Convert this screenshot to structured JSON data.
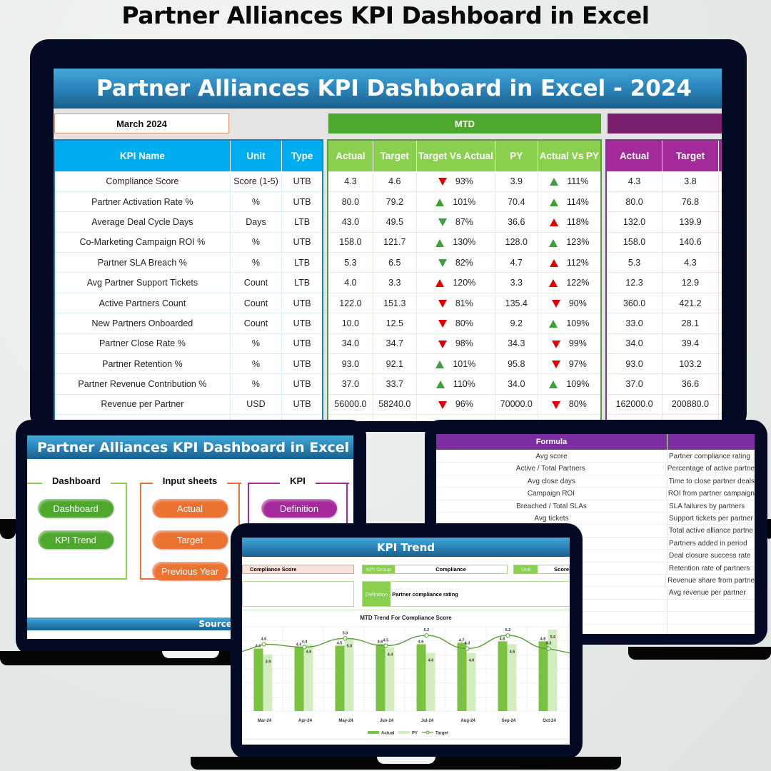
{
  "page_title": "Partner Alliances KPI Dashboard in Excel",
  "main": {
    "banner": "Partner Alliances KPI Dashboard in Excel - 2024",
    "month": "March 2024",
    "mtd_label": "MTD",
    "ytd_label": "",
    "kpi_headers": [
      "KPI Name",
      "Unit",
      "Type"
    ],
    "mtd_headers": [
      "Actual",
      "Target",
      "Target Vs Actual",
      "PY",
      "Actual Vs PY"
    ],
    "ytd_headers": [
      "Actual",
      "Target"
    ],
    "rows": [
      {
        "name": "Compliance Score",
        "unit": "Score (1-5)",
        "type": "UTB",
        "mtd_actual": "4.3",
        "mtd_target": "4.6",
        "tva": "93%",
        "tva_dir": "dn-r",
        "py": "3.9",
        "avp": "111%",
        "avp_dir": "up-g",
        "ytd_actual": "4.3",
        "ytd_target": "3.8"
      },
      {
        "name": "Partner Activation Rate %",
        "unit": "%",
        "type": "UTB",
        "mtd_actual": "80.0",
        "mtd_target": "79.2",
        "tva": "101%",
        "tva_dir": "up-g",
        "py": "70.4",
        "avp": "114%",
        "avp_dir": "up-g",
        "ytd_actual": "80.0",
        "ytd_target": "76.8"
      },
      {
        "name": "Average Deal Cycle Days",
        "unit": "Days",
        "type": "LTB",
        "mtd_actual": "43.0",
        "mtd_target": "49.5",
        "tva": "87%",
        "tva_dir": "dn-g",
        "py": "36.6",
        "avp": "118%",
        "avp_dir": "up-r",
        "ytd_actual": "132.0",
        "ytd_target": "139.9"
      },
      {
        "name": "Co-Marketing Campaign ROI %",
        "unit": "%",
        "type": "UTB",
        "mtd_actual": "158.0",
        "mtd_target": "121.7",
        "tva": "130%",
        "tva_dir": "up-g",
        "py": "128.0",
        "avp": "123%",
        "avp_dir": "up-g",
        "ytd_actual": "158.0",
        "ytd_target": "140.6"
      },
      {
        "name": "Partner SLA Breach %",
        "unit": "%",
        "type": "LTB",
        "mtd_actual": "5.3",
        "mtd_target": "6.5",
        "tva": "82%",
        "tva_dir": "dn-g",
        "py": "4.7",
        "avp": "112%",
        "avp_dir": "up-r",
        "ytd_actual": "5.3",
        "ytd_target": "4.3"
      },
      {
        "name": "Avg Partner Support Tickets",
        "unit": "Count",
        "type": "LTB",
        "mtd_actual": "4.0",
        "mtd_target": "3.3",
        "tva": "120%",
        "tva_dir": "up-r",
        "py": "3.3",
        "avp": "122%",
        "avp_dir": "up-r",
        "ytd_actual": "12.3",
        "ytd_target": "12.9"
      },
      {
        "name": "Active Partners Count",
        "unit": "Count",
        "type": "UTB",
        "mtd_actual": "122.0",
        "mtd_target": "151.3",
        "tva": "81%",
        "tva_dir": "dn-r",
        "py": "135.4",
        "avp": "90%",
        "avp_dir": "dn-r",
        "ytd_actual": "360.0",
        "ytd_target": "421.2"
      },
      {
        "name": "New Partners Onboarded",
        "unit": "Count",
        "type": "UTB",
        "mtd_actual": "10.0",
        "mtd_target": "12.5",
        "tva": "80%",
        "tva_dir": "dn-r",
        "py": "9.2",
        "avp": "109%",
        "avp_dir": "up-g",
        "ytd_actual": "33.0",
        "ytd_target": "28.1"
      },
      {
        "name": "Partner Close Rate %",
        "unit": "%",
        "type": "UTB",
        "mtd_actual": "34.0",
        "mtd_target": "34.7",
        "tva": "98%",
        "tva_dir": "dn-r",
        "py": "34.3",
        "avp": "99%",
        "avp_dir": "dn-r",
        "ytd_actual": "34.0",
        "ytd_target": "39.4"
      },
      {
        "name": "Partner Retention %",
        "unit": "%",
        "type": "UTB",
        "mtd_actual": "93.0",
        "mtd_target": "92.1",
        "tva": "101%",
        "tva_dir": "up-g",
        "py": "95.8",
        "avp": "97%",
        "avp_dir": "dn-r",
        "ytd_actual": "93.0",
        "ytd_target": "103.2"
      },
      {
        "name": "Partner Revenue Contribution %",
        "unit": "%",
        "type": "UTB",
        "mtd_actual": "37.0",
        "mtd_target": "33.7",
        "tva": "110%",
        "tva_dir": "up-g",
        "py": "34.0",
        "avp": "109%",
        "avp_dir": "up-g",
        "ytd_actual": "37.0",
        "ytd_target": "36.6"
      },
      {
        "name": "Revenue per Partner",
        "unit": "USD",
        "type": "UTB",
        "mtd_actual": "56000.0",
        "mtd_target": "58240.0",
        "tva": "96%",
        "tva_dir": "dn-r",
        "py": "70000.0",
        "avp": "80%",
        "avp_dir": "dn-r",
        "ytd_actual": "162000.0",
        "ytd_target": "200880.0"
      }
    ]
  },
  "home": {
    "banner": "Partner Alliances KPI Dashboard in Excel",
    "groups": [
      {
        "title": "Dashboard",
        "buttons": [
          "Dashboard",
          "KPI Trend"
        ]
      },
      {
        "title": "Input sheets",
        "buttons": [
          "Actual",
          "Target",
          "Previous Year"
        ]
      },
      {
        "title": "KPI",
        "buttons": [
          "Definition"
        ]
      }
    ],
    "source_label": "Source"
  },
  "definitions": {
    "formula_header": "Formula",
    "rows": [
      {
        "formula": "Avg score",
        "definition": "Partner compliance rating"
      },
      {
        "formula": "Active / Total Partners",
        "definition": "Percentage of active partne"
      },
      {
        "formula": "Avg close days",
        "definition": "Time to close partner deals"
      },
      {
        "formula": "Campaign ROI",
        "definition": "ROI from partner campaign"
      },
      {
        "formula": "Breached / Total SLAs",
        "definition": "SLA failures by partners"
      },
      {
        "formula": "Avg tickets",
        "definition": "Support tickets per partner"
      },
      {
        "formula": "",
        "definition": "Total active alliance partne"
      },
      {
        "formula": "",
        "definition": "Partners added in period"
      },
      {
        "formula": "",
        "definition": "Deal closure success rate"
      },
      {
        "formula": "",
        "definition": "Retention rate of partners"
      },
      {
        "formula": "",
        "definition": "Revenue share from partne"
      },
      {
        "formula": "",
        "definition": "Avg revenue per partner"
      }
    ]
  },
  "trend": {
    "banner": "KPI Trend",
    "kpi_selected": "Compliance Score",
    "kpi_group_label": "KPI Group",
    "kpi_group_value": "Compliance",
    "unit_label": "Unit",
    "unit_value": "Score",
    "definition_label": "Definition",
    "definition_value": "Partner compliance rating"
  },
  "chart_data": {
    "type": "bar",
    "title": "MTD Trend For Compliance Score",
    "categories": [
      "Mar-24",
      "Apr-24",
      "May-24",
      "Jun-24",
      "Jul-24",
      "Aug-24",
      "Sep-24",
      "Oct-24"
    ],
    "series": [
      {
        "name": "Actual",
        "type": "bar",
        "color": "#7cc242",
        "values": [
          4.3,
          4.4,
          4.5,
          4.6,
          4.6,
          4.7,
          4.8,
          4.8
        ]
      },
      {
        "name": "PY",
        "type": "bar",
        "color": "#d4edc0",
        "values": [
          3.9,
          4.6,
          5.0,
          4.4,
          4.0,
          4.0,
          4.6,
          5.6
        ]
      },
      {
        "name": "Target",
        "type": "line",
        "color": "#5a9e3a",
        "values": [
          4.6,
          4.4,
          5.0,
          4.5,
          5.2,
          4.3,
          5.2,
          4.3
        ]
      }
    ],
    "legend": [
      "Actual",
      "PY",
      "Target"
    ],
    "legend_position": "bottom",
    "grid": true
  }
}
